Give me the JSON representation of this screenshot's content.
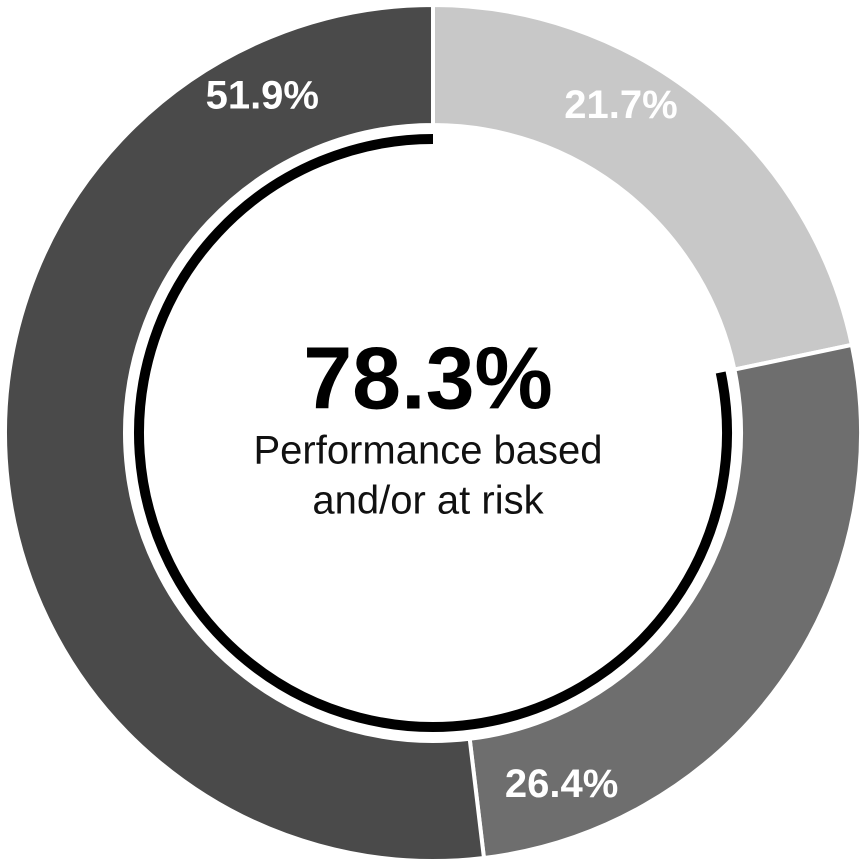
{
  "chart_data": {
    "type": "donut",
    "values": [
      21.7,
      26.4,
      51.9
    ],
    "value_labels": [
      "21.7%",
      "26.4%",
      "51.9%"
    ],
    "colors": [
      "#c8c8c8",
      "#6e6e6e",
      "#4a4a4a"
    ],
    "center_value": 78.3,
    "center_value_label": "78.3%",
    "center_text": [
      "Performance based",
      "and/or at risk"
    ]
  }
}
